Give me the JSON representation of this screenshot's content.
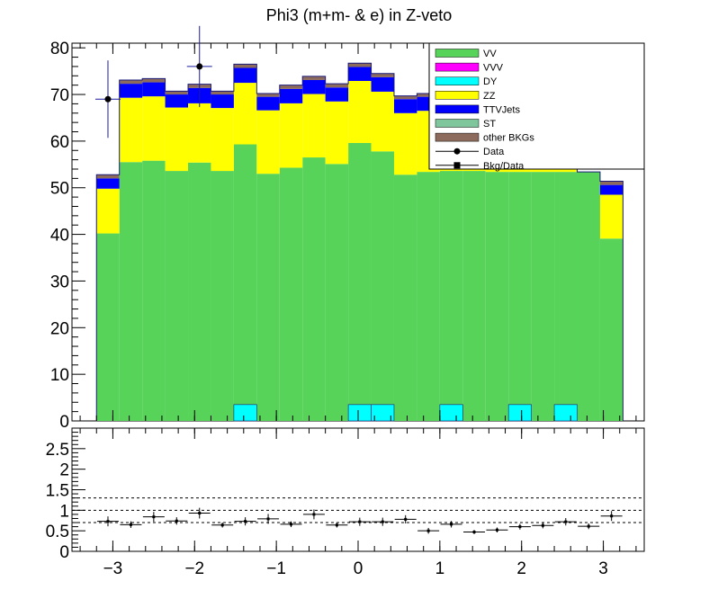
{
  "title": "Phi3 (m+m- & e) in Z-veto",
  "chart_data": {
    "type": "bar",
    "stacked": true,
    "title": "Phi3 (m+m- & e) in Z-veto",
    "xlabel": "",
    "ylabel": "",
    "xlim": [
      -3.5,
      3.5
    ],
    "ylim": [
      0,
      81
    ],
    "grid": false,
    "legend_placement": "top-right",
    "x_ticks": [
      -3,
      -2,
      -1,
      0,
      1,
      2,
      3
    ],
    "x_tick_labels": [
      "−3",
      "−2",
      "−1",
      "0",
      "1",
      "2",
      "3"
    ],
    "y_ticks": [
      0,
      10,
      20,
      30,
      40,
      50,
      60,
      70,
      80
    ],
    "bin_edges": [
      -3.2,
      -2.92,
      -2.64,
      -2.36,
      -2.08,
      -1.8,
      -1.52,
      -1.24,
      -0.96,
      -0.68,
      -0.4,
      -0.12,
      0.16,
      0.44,
      0.72,
      1.0,
      1.28,
      1.56,
      1.84,
      2.12,
      2.4,
      2.68,
      2.96,
      3.24
    ],
    "series": [
      {
        "name": "VV",
        "color": "#57d35a",
        "values": [
          40.2,
          55.5,
          55.8,
          53.6,
          55.4,
          53.6,
          59.3,
          53.0,
          54.3,
          56.5,
          55.1,
          59.6,
          57.8,
          52.8,
          53.4,
          53.6,
          53.6,
          53.4,
          53.4,
          53.4,
          53.4,
          53.4,
          39.1
        ]
      },
      {
        "name": "VVV",
        "color": "#ff00ff",
        "values": [
          0,
          0,
          0,
          0,
          0,
          0,
          0,
          0,
          0,
          0,
          0,
          0,
          0,
          0,
          0,
          0,
          0,
          0,
          0,
          0,
          0,
          0,
          0
        ]
      },
      {
        "name": "DY",
        "color": "#00ffff",
        "values": [
          0,
          0,
          0,
          0,
          0,
          0,
          0,
          0,
          0,
          0,
          0,
          0,
          0,
          0,
          0,
          0,
          0,
          0,
          0,
          0,
          0,
          0,
          0
        ]
      },
      {
        "name": "ZZ",
        "color": "#ffff00",
        "values": [
          9.6,
          13.8,
          13.8,
          13.6,
          12.7,
          13.5,
          13.2,
          13.6,
          13.8,
          13.6,
          13.4,
          13.3,
          12.8,
          13.2,
          13.1,
          13.0,
          13.0,
          13.0,
          13.0,
          13.0,
          13.0,
          0,
          9.4
        ]
      },
      {
        "name": "TTVJets",
        "color": "#0000ff",
        "values": [
          2.2,
          3.0,
          3.0,
          2.8,
          3.3,
          2.9,
          3.2,
          2.9,
          3.1,
          3.0,
          3.0,
          3.0,
          3.1,
          3.0,
          3.0,
          3.0,
          3.0,
          3.0,
          3.0,
          3.0,
          3.0,
          0,
          2.1
        ]
      },
      {
        "name": "ST",
        "color": "#7fc69d",
        "values": [
          0,
          0,
          0,
          0,
          0,
          0,
          0,
          0,
          0,
          0,
          0,
          0,
          0,
          0,
          0,
          0,
          0,
          0,
          0,
          0,
          0,
          0,
          0
        ]
      },
      {
        "name": "other BKGs",
        "color": "#8c6b5c",
        "values": [
          0.8,
          0.8,
          0.8,
          0.7,
          0.8,
          0.7,
          0.8,
          0.7,
          0.8,
          0.8,
          0.8,
          0.8,
          0.8,
          0.7,
          0.7,
          0.7,
          0.7,
          0.7,
          0.7,
          0.7,
          0.7,
          0,
          0.8
        ]
      }
    ],
    "overlay": {
      "name": "DY",
      "color": "#00ffff",
      "bins": [
        {
          "x": [
            -1.52,
            -1.24
          ],
          "value": 3.5
        },
        {
          "x": [
            -0.12,
            0.16
          ],
          "value": 3.5
        },
        {
          "x": [
            0.16,
            0.44
          ],
          "value": 3.5
        },
        {
          "x": [
            1.0,
            1.28
          ],
          "value": 3.5
        },
        {
          "x": [
            1.84,
            2.12
          ],
          "value": 3.5
        },
        {
          "x": [
            2.4,
            2.68
          ],
          "value": 3.5
        }
      ]
    },
    "data_points": {
      "name": "Data",
      "color": "#000000",
      "points": [
        {
          "x": -3.06,
          "y": 69,
          "err_low": 8.3,
          "err_high": 8.3
        },
        {
          "x": -1.94,
          "y": 76,
          "err_low": 8.7,
          "err_high": 8.7
        }
      ]
    },
    "legend": [
      {
        "label": "VV",
        "kind": "box",
        "color": "#57d35a"
      },
      {
        "label": "VVV",
        "kind": "box",
        "color": "#ff00ff"
      },
      {
        "label": "DY",
        "kind": "box",
        "color": "#00ffff"
      },
      {
        "label": "ZZ",
        "kind": "box",
        "color": "#ffff00"
      },
      {
        "label": "TTVJets",
        "kind": "box",
        "color": "#0000ff"
      },
      {
        "label": "ST",
        "kind": "box",
        "color": "#7fc69d"
      },
      {
        "label": "other BKGs",
        "kind": "box",
        "color": "#8c6b5c"
      },
      {
        "label": "Data",
        "kind": "marker-circle",
        "color": "#000000"
      },
      {
        "label": "Bkg/Data",
        "kind": "marker-square",
        "color": "#000000"
      }
    ],
    "ratio": {
      "name": "Bkg/Data",
      "ylim": [
        0,
        3
      ],
      "y_ticks": [
        0,
        0.5,
        1,
        1.5,
        2,
        2.5
      ],
      "y_tick_labels": [
        "0",
        "0.5",
        "1",
        "1.5",
        "2",
        "2.5"
      ],
      "reference_lines": [
        0.7,
        1.0,
        1.3
      ],
      "x": [
        -3.06,
        -2.78,
        -2.5,
        -2.22,
        -1.94,
        -1.66,
        -1.38,
        -1.1,
        -0.82,
        -0.54,
        -0.26,
        0.02,
        0.3,
        0.58,
        0.86,
        1.14,
        1.42,
        1.7,
        1.98,
        2.26,
        2.54,
        2.82,
        3.1
      ],
      "values": [
        0.73,
        0.65,
        0.84,
        0.74,
        0.93,
        0.64,
        0.73,
        0.79,
        0.66,
        0.9,
        0.64,
        0.72,
        0.72,
        0.78,
        0.5,
        0.66,
        0.47,
        0.52,
        0.6,
        0.63,
        0.72,
        0.61,
        0.86
      ],
      "errors": [
        0.12,
        0.08,
        0.12,
        0.09,
        0.13,
        0.06,
        0.1,
        0.12,
        0.07,
        0.12,
        0.06,
        0.1,
        0.1,
        0.1,
        0.07,
        0.08,
        0.05,
        0.06,
        0.07,
        0.07,
        0.09,
        0.07,
        0.12
      ]
    }
  }
}
